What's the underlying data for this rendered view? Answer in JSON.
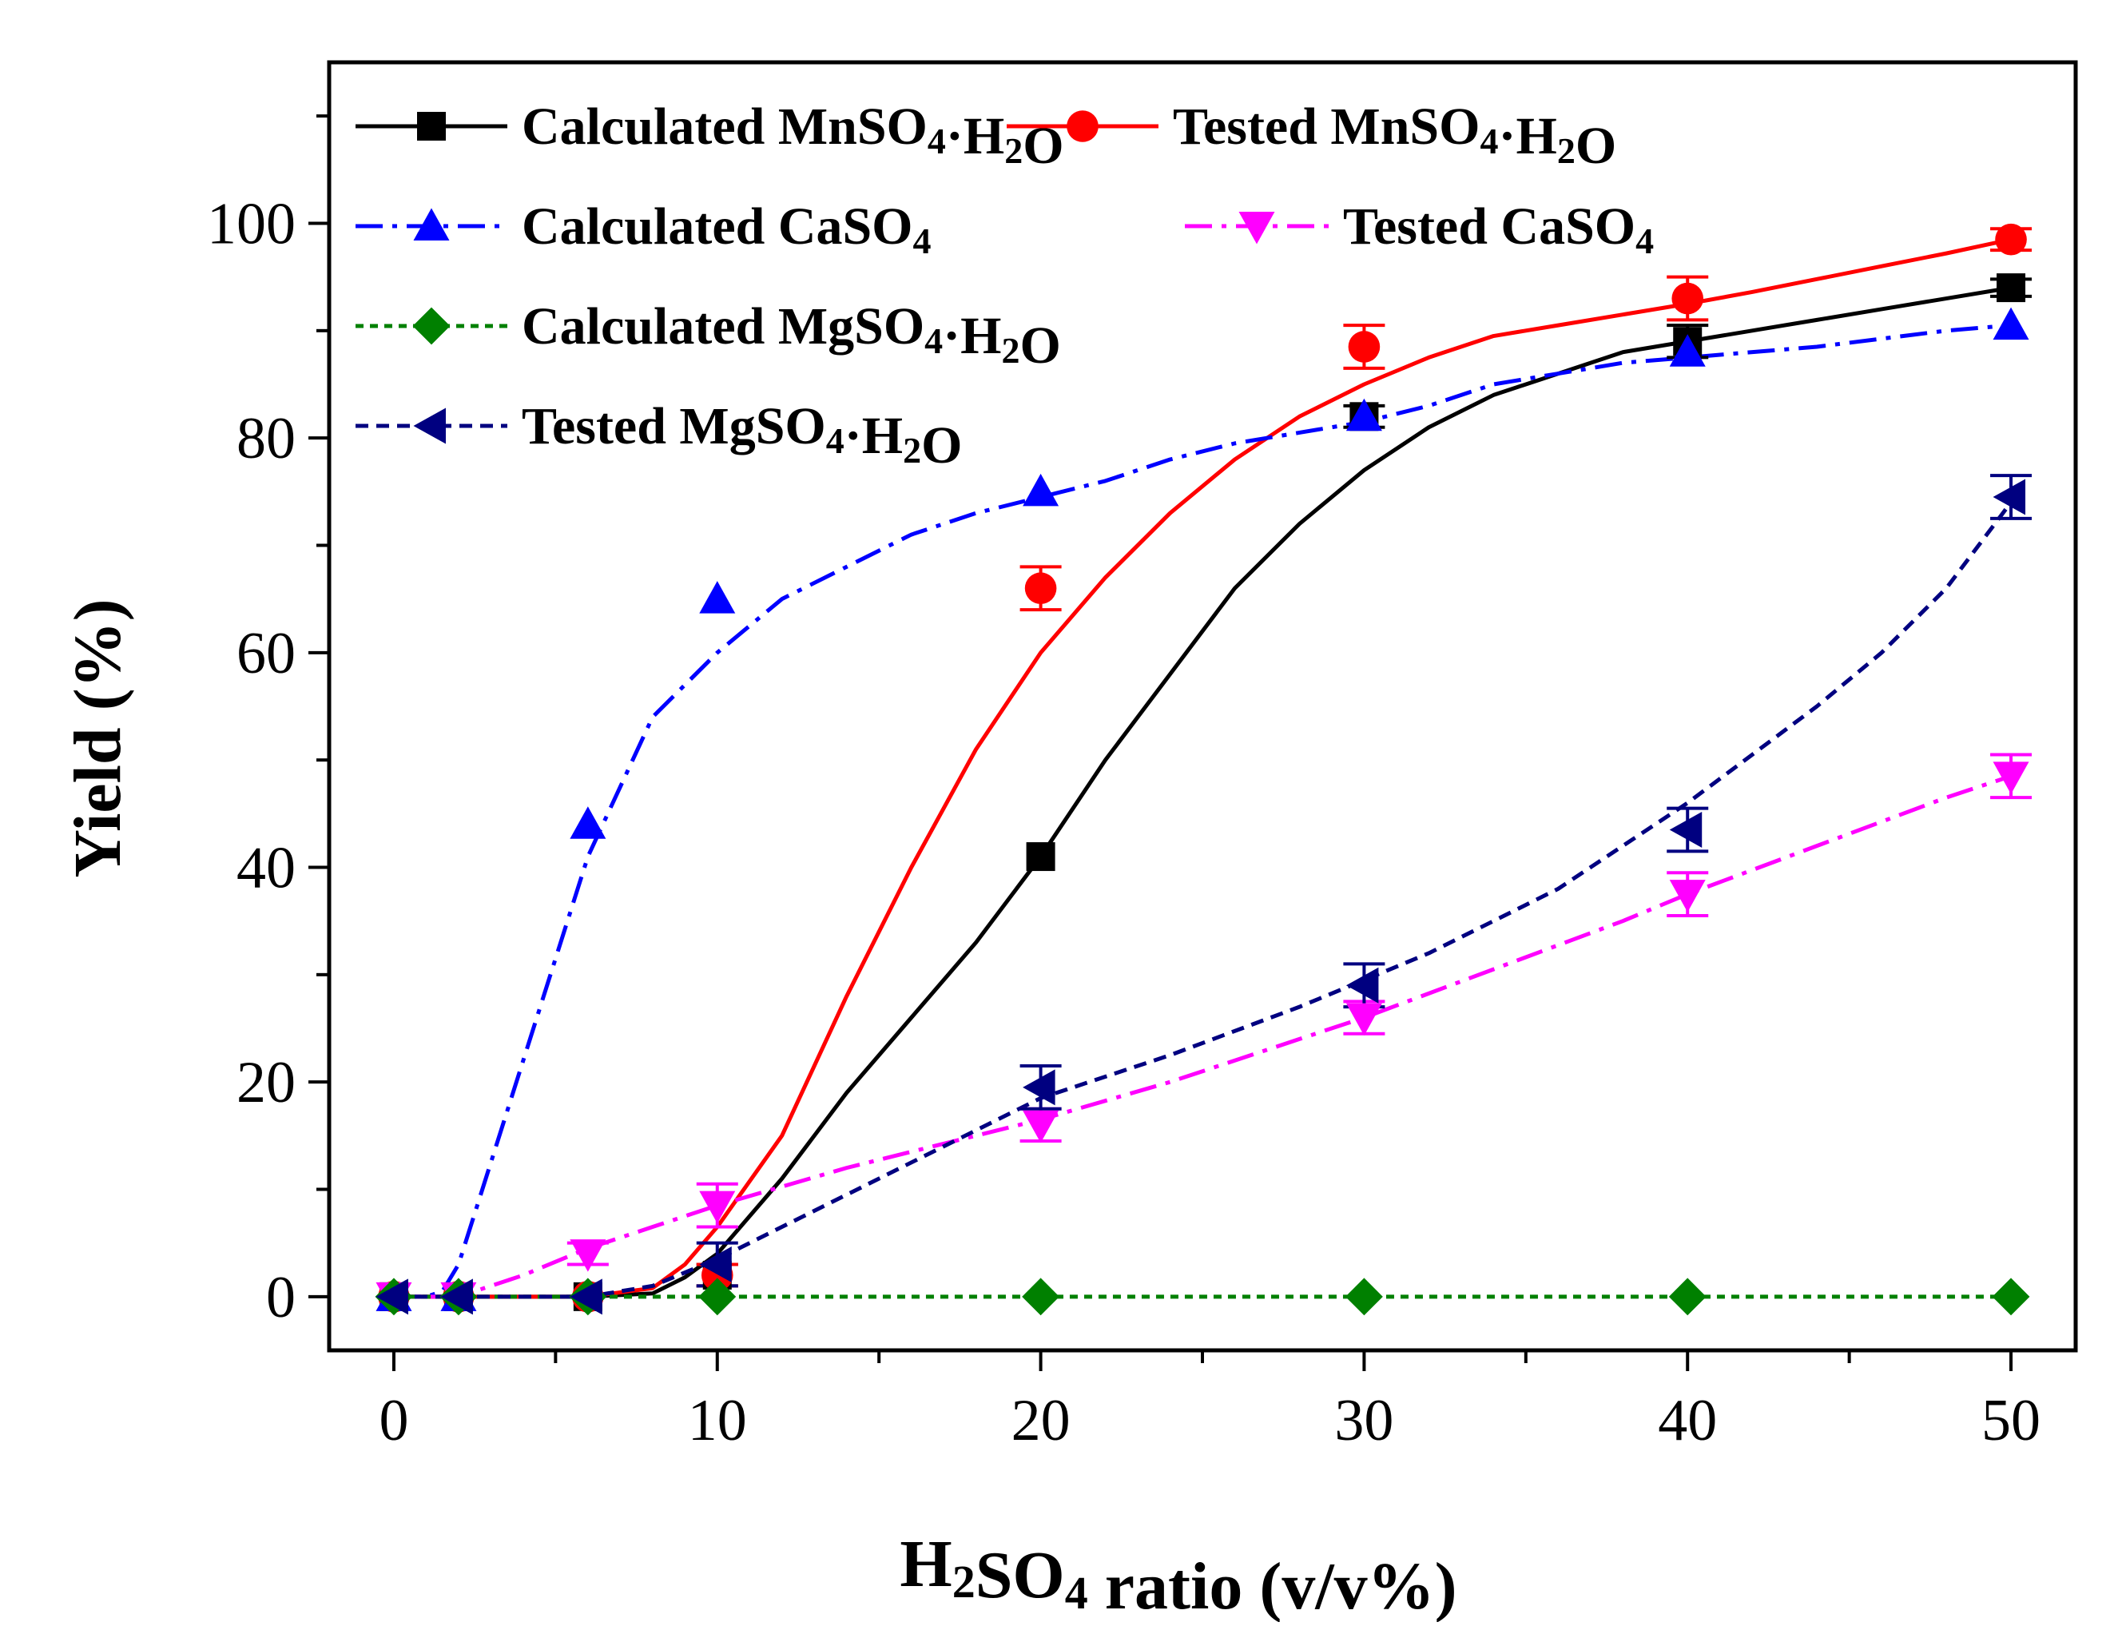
{
  "chart_data": {
    "type": "line",
    "title": "",
    "xlabel": "H2SO4 ratio (v/v%)",
    "ylabel": "Yield (%)",
    "xlim": [
      -2,
      52
    ],
    "ylim": [
      -5,
      115
    ],
    "x_ticks": [
      0,
      10,
      20,
      30,
      40,
      50
    ],
    "y_ticks": [
      0,
      20,
      40,
      60,
      80,
      100
    ],
    "grid": false,
    "legend_position": "top",
    "series": [
      {
        "name": "Calculated MnSO4·H2O",
        "label_main": "Calculated MnSO",
        "label_sub1": "4",
        "label_mid": "·H",
        "label_sub2": "2",
        "label_end": "O",
        "color": "#000000",
        "marker": "square",
        "dash": "solid",
        "x": [
          0,
          2,
          6,
          10,
          20,
          30,
          40,
          50
        ],
        "y": [
          0,
          0,
          0,
          2,
          41,
          82,
          89,
          94
        ],
        "err": [
          0,
          0,
          0,
          1,
          0,
          1,
          1.5,
          0.8
        ],
        "curve": [
          [
            0,
            0
          ],
          [
            6,
            0
          ],
          [
            8,
            0.3
          ],
          [
            9,
            1.8
          ],
          [
            10,
            4
          ],
          [
            12,
            11
          ],
          [
            14,
            19
          ],
          [
            16,
            26
          ],
          [
            18,
            33
          ],
          [
            20,
            41
          ],
          [
            22,
            50
          ],
          [
            24,
            58
          ],
          [
            26,
            66
          ],
          [
            28,
            72
          ],
          [
            30,
            77
          ],
          [
            32,
            81
          ],
          [
            34,
            84
          ],
          [
            36,
            86
          ],
          [
            38,
            88
          ],
          [
            40,
            89
          ],
          [
            42,
            90
          ],
          [
            44,
            91
          ],
          [
            46,
            92
          ],
          [
            48,
            93
          ],
          [
            50,
            94
          ]
        ]
      },
      {
        "name": "Tested MnSO4·H2O",
        "label_main": "Tested MnSO",
        "label_sub1": "4",
        "label_mid": "·H",
        "label_sub2": "2",
        "label_end": "O",
        "color": "#ff0000",
        "marker": "circle",
        "dash": "solid",
        "x": [
          0,
          2,
          6,
          10,
          20,
          30,
          40,
          50
        ],
        "y": [
          0,
          0,
          0,
          2,
          66,
          88.5,
          93,
          98.5
        ],
        "err": [
          0,
          0,
          0,
          1,
          2,
          2,
          2,
          1
        ],
        "curve": [
          [
            0,
            0
          ],
          [
            6,
            0
          ],
          [
            8,
            0.8
          ],
          [
            9,
            3
          ],
          [
            10,
            6.5
          ],
          [
            12,
            15
          ],
          [
            14,
            28
          ],
          [
            16,
            40
          ],
          [
            18,
            51
          ],
          [
            20,
            60
          ],
          [
            22,
            67
          ],
          [
            24,
            73
          ],
          [
            26,
            78
          ],
          [
            28,
            82
          ],
          [
            30,
            85
          ],
          [
            32,
            87.5
          ],
          [
            34,
            89.5
          ],
          [
            36,
            90.5
          ],
          [
            38,
            91.5
          ],
          [
            40,
            92.5
          ],
          [
            42,
            93.6
          ],
          [
            44,
            94.8
          ],
          [
            46,
            96
          ],
          [
            48,
            97.2
          ],
          [
            50,
            98.5
          ]
        ]
      },
      {
        "name": "Calculated CaSO4",
        "label_main": "Calculated CaSO",
        "label_sub1": "4",
        "label_mid": "",
        "label_sub2": "",
        "label_end": "",
        "color": "#0000ff",
        "marker": "triangle-up",
        "dash": "dashdot",
        "x": [
          0,
          2,
          6,
          10,
          20,
          30,
          40,
          50
        ],
        "y": [
          0,
          0,
          44,
          65,
          75,
          82,
          88,
          90.5
        ],
        "err": [
          0,
          0,
          0,
          0,
          0,
          0,
          0,
          0
        ],
        "curve": [
          [
            0,
            0
          ],
          [
            1,
            0
          ],
          [
            1.5,
            0.5
          ],
          [
            2,
            3
          ],
          [
            4,
            22
          ],
          [
            6,
            41
          ],
          [
            8,
            54
          ],
          [
            10,
            60
          ],
          [
            12,
            65
          ],
          [
            14,
            68
          ],
          [
            16,
            71
          ],
          [
            18,
            73
          ],
          [
            20,
            74.5
          ],
          [
            22,
            76
          ],
          [
            24,
            78
          ],
          [
            26,
            79.5
          ],
          [
            28,
            80.5
          ],
          [
            30,
            81.5
          ],
          [
            32,
            83
          ],
          [
            34,
            85
          ],
          [
            36,
            86
          ],
          [
            38,
            87
          ],
          [
            40,
            87.5
          ],
          [
            44,
            88.5
          ],
          [
            48,
            90
          ],
          [
            50,
            90.5
          ]
        ]
      },
      {
        "name": "Tested CaSO4",
        "label_main": "Tested CaSO",
        "label_sub1": "4",
        "label_mid": "",
        "label_sub2": "",
        "label_end": "",
        "color": "#ff00ff",
        "marker": "triangle-down",
        "dash": "dashdot",
        "x": [
          0,
          2,
          6,
          10,
          20,
          30,
          40,
          50
        ],
        "y": [
          0,
          0,
          4,
          8.5,
          16,
          26,
          37.5,
          48.5
        ],
        "err": [
          0,
          0,
          1,
          2,
          1.5,
          1.5,
          2,
          2
        ],
        "curve": [
          [
            0,
            0
          ],
          [
            2,
            0
          ],
          [
            4,
            2
          ],
          [
            6,
            4.5
          ],
          [
            8,
            6.5
          ],
          [
            10,
            8.5
          ],
          [
            14,
            12
          ],
          [
            18,
            15
          ],
          [
            20,
            16.5
          ],
          [
            24,
            20
          ],
          [
            28,
            24
          ],
          [
            30,
            26
          ],
          [
            34,
            30.5
          ],
          [
            38,
            35
          ],
          [
            40,
            37.5
          ],
          [
            44,
            42
          ],
          [
            48,
            46.5
          ],
          [
            50,
            48.5
          ]
        ]
      },
      {
        "name": "Calculated MgSO4·H2O",
        "label_main": "Calculated MgSO",
        "label_sub1": "4",
        "label_mid": "·H",
        "label_sub2": "2",
        "label_end": "O",
        "color": "#008000",
        "marker": "diamond",
        "dash": "dotted",
        "x": [
          0,
          2,
          6,
          10,
          20,
          30,
          40,
          50
        ],
        "y": [
          0,
          0,
          0,
          0,
          0,
          0,
          0,
          0
        ],
        "err": [
          0,
          0,
          0,
          0,
          0,
          0,
          0,
          0
        ],
        "curve": [
          [
            0,
            0
          ],
          [
            50,
            0
          ]
        ]
      },
      {
        "name": "Tested MgSO4·H2O",
        "label_main": "Tested MgSO",
        "label_sub1": "4",
        "label_mid": "·H",
        "label_sub2": "2",
        "label_end": "O",
        "color": "#000080",
        "marker": "triangle-left",
        "dash": "dashed",
        "x": [
          0,
          2,
          6,
          10,
          20,
          30,
          40,
          50
        ],
        "y": [
          0,
          0,
          0,
          3,
          19.5,
          29,
          43.5,
          74.5
        ],
        "err": [
          0,
          0,
          0,
          2,
          2,
          2,
          2,
          2
        ],
        "curve": [
          [
            0,
            0
          ],
          [
            6,
            0
          ],
          [
            8,
            1
          ],
          [
            10,
            3.5
          ],
          [
            14,
            9.5
          ],
          [
            18,
            15.5
          ],
          [
            20,
            18.5
          ],
          [
            24,
            22.5
          ],
          [
            28,
            27
          ],
          [
            30,
            29.5
          ],
          [
            32,
            32
          ],
          [
            34,
            35
          ],
          [
            36,
            38
          ],
          [
            38,
            42
          ],
          [
            40,
            46
          ],
          [
            42,
            50.5
          ],
          [
            44,
            55
          ],
          [
            46,
            60
          ],
          [
            48,
            66
          ],
          [
            50,
            74
          ]
        ]
      }
    ]
  }
}
